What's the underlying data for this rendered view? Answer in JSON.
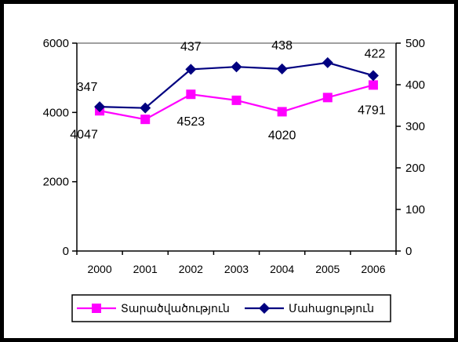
{
  "chart_data": {
    "type": "line",
    "categories": [
      "2000",
      "2001",
      "2002",
      "2003",
      "2004",
      "2005",
      "2006"
    ],
    "y_left": {
      "ticks": [
        "0",
        "2000",
        "4000",
        "6000"
      ],
      "range": [
        0,
        6000
      ]
    },
    "y_right": {
      "ticks": [
        "0",
        "100",
        "200",
        "300",
        "400",
        "500"
      ],
      "range": [
        0,
        500
      ]
    },
    "grid": false,
    "legend_position": "bottom",
    "series": [
      {
        "name": "Տարածվածություն",
        "axis": "left",
        "color": "#ff00ff",
        "marker": "square",
        "values": [
          4047,
          3800,
          4523,
          4350,
          4020,
          4430,
          4791
        ],
        "point_labels": [
          "4047",
          "",
          "4523",
          "",
          "4020",
          "",
          "4791"
        ]
      },
      {
        "name": "Մահացություն",
        "axis": "right",
        "color": "#000080",
        "marker": "diamond",
        "values": [
          347,
          344,
          437,
          443,
          438,
          453,
          422
        ],
        "point_labels": [
          "347",
          "",
          "437",
          "",
          "438",
          "",
          "422"
        ]
      }
    ]
  }
}
